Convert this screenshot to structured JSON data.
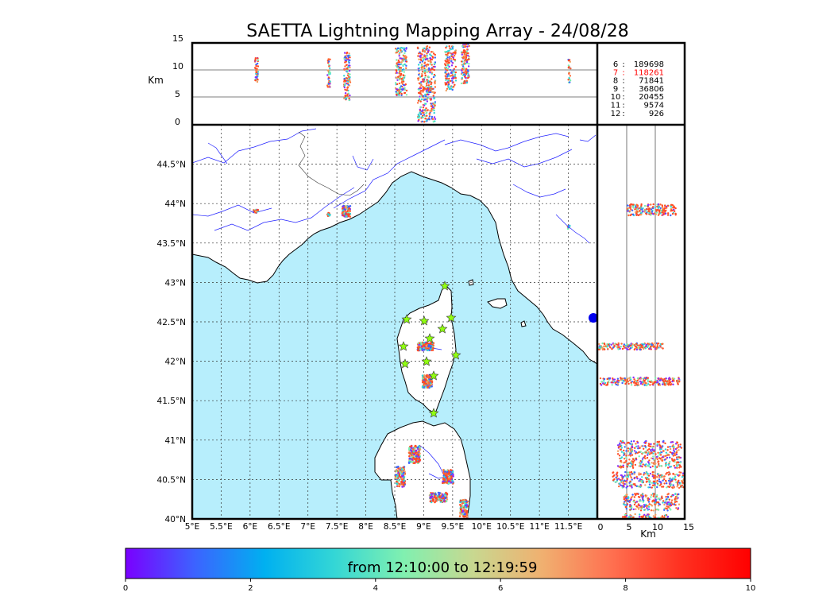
{
  "title": "SAETTA Lightning Mapping Array - 24/08/28",
  "altitude_axis": {
    "unit_label": "Km",
    "tick_labels": [
      "15",
      "10",
      "5",
      "0"
    ],
    "bottom_tick_labels": [
      "0",
      "5",
      "10",
      "15"
    ]
  },
  "map_axes": {
    "lat_labels": [
      "44.5°N",
      "44°N",
      "43.5°N",
      "43°N",
      "42.5°N",
      "42°N",
      "41.5°N",
      "41°N",
      "40.5°N",
      "40°N"
    ],
    "lon_labels": [
      "5°E",
      "5.5°E",
      "6°E",
      "6.5°E",
      "7°E",
      "7.5°E",
      "8°E",
      "8.5°E",
      "9°E",
      "9.5°E",
      "10°E",
      "10.5°E",
      "11°E",
      "11.5°E"
    ],
    "lon_range": [
      5,
      12
    ],
    "lat_range": [
      40,
      45
    ]
  },
  "station_counts": [
    {
      "station": "6",
      "count": "189698",
      "color": "#000000"
    },
    {
      "station": "7",
      "count": "118261",
      "color": "#ff0000"
    },
    {
      "station": "8",
      "count": "71841",
      "color": "#000000"
    },
    {
      "station": "9",
      "count": "36806",
      "color": "#000000"
    },
    {
      "station": "10",
      "count": "20455",
      "color": "#000000"
    },
    {
      "station": "11",
      "count": "9574",
      "color": "#000000"
    },
    {
      "station": "12",
      "count": "926",
      "color": "#000000"
    }
  ],
  "colorbar": {
    "caption": "from 12:10:00 to 12:19:59",
    "tick_labels": [
      "0",
      "2",
      "4",
      "6",
      "8",
      "10"
    ],
    "colors": [
      "#7a00ff",
      "#3c63ff",
      "#00b0f0",
      "#33d6d6",
      "#80f0b0",
      "#c8d890",
      "#f0b070",
      "#ff7050",
      "#ff3020",
      "#ff0000"
    ]
  },
  "colors": {
    "sea": "#b7eefc",
    "land": "#ffffff",
    "rivers": "#2020ff",
    "grid": "#444444",
    "station_marker": "#90ff10",
    "source_main": "#ff4a24"
  }
}
